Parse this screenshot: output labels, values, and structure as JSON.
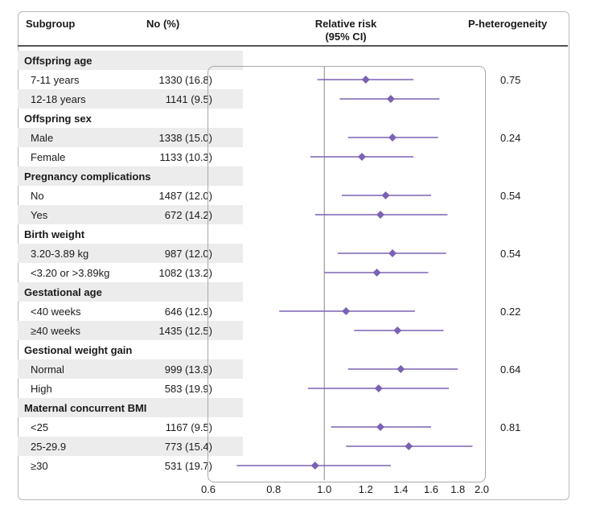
{
  "headers": {
    "subgroup": "Subgroup",
    "no": "No (%)",
    "rr_line1": "Relative risk",
    "rr_line2": "(95% CI)",
    "p": "P-heterogeneity"
  },
  "rows": [
    {
      "type": "group",
      "label": "Offspring age"
    },
    {
      "type": "item",
      "label": "7-11 years",
      "no": "1330 (16.8)",
      "p": "0.75"
    },
    {
      "type": "item",
      "label": "12-18 years",
      "no": "1141 (9.5)",
      "p": ""
    },
    {
      "type": "group",
      "label": "Offspring sex"
    },
    {
      "type": "item",
      "label": "Male",
      "no": "1338 (15.0)",
      "p": "0.24"
    },
    {
      "type": "item",
      "label": "Female",
      "no": "1133 (10.3)",
      "p": ""
    },
    {
      "type": "group",
      "label": "Pregnancy complications"
    },
    {
      "type": "item",
      "label": "No",
      "no": "1487 (12.0)",
      "p": "0.54"
    },
    {
      "type": "item",
      "label": "Yes",
      "no": "672 (14.2)",
      "p": ""
    },
    {
      "type": "group",
      "label": "Birth weight"
    },
    {
      "type": "item",
      "label": "3.20-3.89 kg",
      "no": "987 (12.0)",
      "p": "0.54"
    },
    {
      "type": "item",
      "label": "<3.20 or >3.89kg",
      "no": "1082 (13.2)",
      "p": ""
    },
    {
      "type": "group",
      "label": "Gestational age"
    },
    {
      "type": "item",
      "label": "<40 weeks",
      "no": "646 (12.9)",
      "p": "0.22"
    },
    {
      "type": "item",
      "label": "≥40 weeks",
      "no": "1435 (12.5)",
      "p": ""
    },
    {
      "type": "group",
      "label": "Gestional weight gain"
    },
    {
      "type": "item",
      "label": "Normal",
      "no": "999 (13.9)",
      "p": "0.64"
    },
    {
      "type": "item",
      "label": "High",
      "no": "583 (19.9)",
      "p": ""
    },
    {
      "type": "group",
      "label": "Maternal concurrent BMI"
    },
    {
      "type": "item",
      "label": "<25",
      "no": "1167 (9.5)",
      "p": "0.81"
    },
    {
      "type": "item",
      "label": "25-29.9",
      "no": "773 (15.4)",
      "p": ""
    },
    {
      "type": "item",
      "label": "≥30",
      "no": "531 (19.7)",
      "p": ""
    }
  ],
  "chart_data": {
    "type": "forest",
    "x_scale": "log",
    "xlim": [
      0.6,
      2.0
    ],
    "xticks": [
      "0.6",
      "0.8",
      "1.0",
      "1.2",
      "1.4",
      "1.6",
      "1.8",
      "2.0"
    ],
    "reference_line": 1.0,
    "marker_color": "#7b62b4",
    "points": [
      {
        "label": "7-11 years",
        "rr": 1.2,
        "lo": 0.97,
        "hi": 1.48
      },
      {
        "label": "12-18 years",
        "rr": 1.34,
        "lo": 1.07,
        "hi": 1.66
      },
      {
        "label": "Male",
        "rr": 1.35,
        "lo": 1.11,
        "hi": 1.65
      },
      {
        "label": "Female",
        "rr": 1.18,
        "lo": 0.94,
        "hi": 1.48
      },
      {
        "label": "No",
        "rr": 1.31,
        "lo": 1.08,
        "hi": 1.6
      },
      {
        "label": "Yes",
        "rr": 1.28,
        "lo": 0.96,
        "hi": 1.72
      },
      {
        "label": "3.20-3.89 kg",
        "rr": 1.35,
        "lo": 1.06,
        "hi": 1.71
      },
      {
        "label": "<3.20 or >3.89kg",
        "rr": 1.26,
        "lo": 1.0,
        "hi": 1.58
      },
      {
        "label": "<40 weeks",
        "rr": 1.1,
        "lo": 0.82,
        "hi": 1.49
      },
      {
        "label": "≥40 weeks",
        "rr": 1.38,
        "lo": 1.14,
        "hi": 1.69
      },
      {
        "label": "Normal",
        "rr": 1.4,
        "lo": 1.11,
        "hi": 1.8
      },
      {
        "label": "High",
        "rr": 1.27,
        "lo": 0.93,
        "hi": 1.73
      },
      {
        "label": "<25",
        "rr": 1.28,
        "lo": 1.03,
        "hi": 1.6
      },
      {
        "label": "25-29.9",
        "rr": 1.45,
        "lo": 1.1,
        "hi": 1.92
      },
      {
        "label": "≥30",
        "rr": 0.96,
        "lo": 0.68,
        "hi": 1.34
      }
    ]
  }
}
